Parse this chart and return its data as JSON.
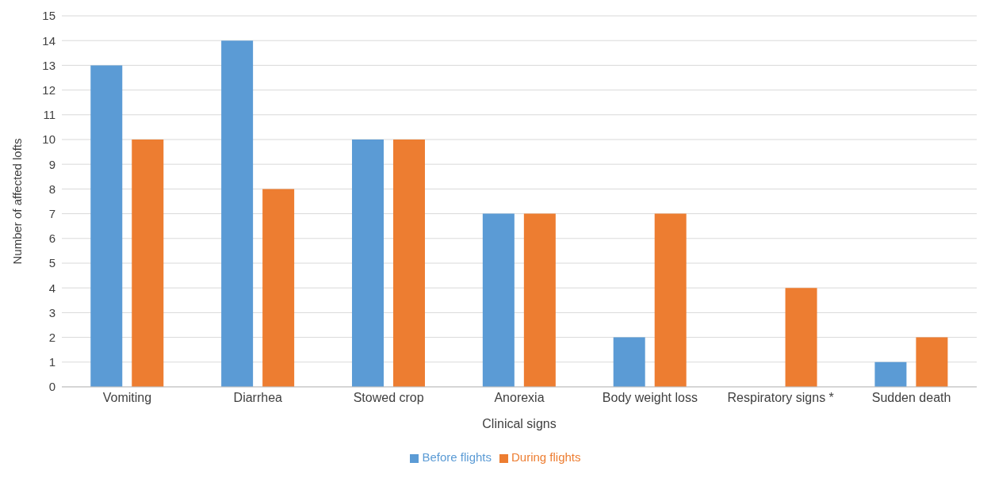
{
  "chart_data": {
    "type": "bar",
    "xlabel": "Clinical signs",
    "ylabel": "Number of affected lofts",
    "categories": [
      "Vomiting",
      "Diarrhea",
      "Stowed crop",
      "Anorexia",
      "Body weight loss",
      "Respiratory signs *",
      "Sudden death"
    ],
    "series": [
      {
        "name": "Before flights",
        "color": "#5b9bd5",
        "values": [
          13,
          14,
          10,
          7,
          2,
          0,
          1
        ]
      },
      {
        "name": "During flights",
        "color": "#ed7d31",
        "values": [
          10,
          8,
          10,
          7,
          7,
          4,
          2
        ]
      }
    ],
    "ylim": [
      0,
      15
    ],
    "yticks": [
      0,
      1,
      2,
      3,
      4,
      5,
      6,
      7,
      8,
      9,
      10,
      11,
      12,
      13,
      14,
      15
    ],
    "grid": "y",
    "legend": "bottom"
  }
}
